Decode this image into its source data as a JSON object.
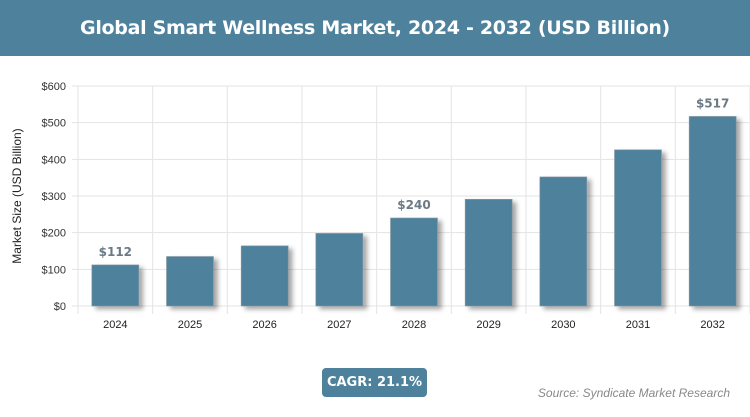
{
  "chart_data": {
    "type": "bar",
    "title": "Global Smart Wellness Market, 2024 - 2032 (USD Billion)",
    "xlabel": "",
    "ylabel": "Market Size (USD Billion)",
    "categories": [
      "2024",
      "2025",
      "2026",
      "2027",
      "2028",
      "2029",
      "2030",
      "2031",
      "2032"
    ],
    "values": [
      112,
      135,
      164,
      198,
      240,
      291,
      352,
      426,
      517
    ],
    "data_labels": {
      "2024": "$112",
      "2028": "$240",
      "2032": "$517"
    },
    "ylim": [
      0,
      600
    ],
    "yticks": [
      0,
      100,
      200,
      300,
      400,
      500,
      600
    ],
    "ytick_labels": [
      "$0",
      "$100",
      "$200",
      "$300",
      "$400",
      "$500",
      "$600"
    ],
    "grid": true,
    "bar_color": "#4d819c"
  },
  "badge": {
    "cagr": "CAGR: 21.1%"
  },
  "source": "Source: Syndicate Market Research"
}
